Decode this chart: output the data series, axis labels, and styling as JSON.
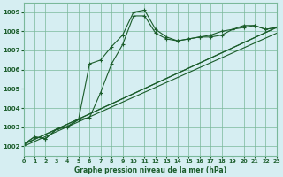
{
  "title": "Graphe pression niveau de la mer (hPa)",
  "background_color": "#d6eef2",
  "grid_color": "#7ab89a",
  "line_color": "#1a5c2a",
  "xlim": [
    0,
    23
  ],
  "ylim": [
    1001.5,
    1009.5
  ],
  "yticks": [
    1002,
    1003,
    1004,
    1005,
    1006,
    1007,
    1008,
    1009
  ],
  "xticks": [
    0,
    1,
    2,
    3,
    4,
    5,
    6,
    7,
    8,
    9,
    10,
    11,
    12,
    13,
    14,
    15,
    16,
    17,
    18,
    19,
    20,
    21,
    22,
    23
  ],
  "series": [
    {
      "x": [
        0,
        1,
        2,
        3,
        4,
        5,
        6,
        7,
        8,
        9,
        10,
        11,
        12,
        13,
        14,
        15,
        16,
        17,
        18,
        19,
        20,
        21,
        22,
        23
      ],
      "y": [
        1002.1,
        1002.5,
        1002.4,
        1002.9,
        1003.0,
        1003.4,
        1003.5,
        1004.8,
        1006.3,
        1007.3,
        1008.8,
        1008.8,
        1007.9,
        1007.6,
        1007.5,
        1007.6,
        1007.7,
        1007.7,
        1007.8,
        1008.1,
        1008.3,
        1008.3,
        1008.1,
        1008.2
      ],
      "linestyle": "-",
      "marker": "+"
    },
    {
      "x": [
        0,
        1,
        2,
        3,
        4,
        5,
        6,
        7,
        8,
        9,
        10,
        11,
        12,
        13,
        14,
        15,
        16,
        17,
        18,
        19,
        20,
        21,
        22,
        23
      ],
      "y": [
        1002.1,
        1002.5,
        1002.4,
        1002.9,
        1003.05,
        1003.4,
        1006.3,
        1006.5,
        1007.2,
        1007.8,
        1009.0,
        1009.1,
        1008.1,
        1007.7,
        1007.5,
        1007.6,
        1007.7,
        1007.8,
        1008.0,
        1008.1,
        1008.2,
        1008.3,
        1008.1,
        1008.2
      ],
      "linestyle": "-",
      "marker": "+"
    },
    {
      "x": [
        0,
        23
      ],
      "y": [
        1002.1,
        1008.2
      ],
      "linestyle": "-",
      "marker": null
    },
    {
      "x": [
        0,
        23
      ],
      "y": [
        1002.1,
        1008.2
      ],
      "linestyle": "-",
      "marker": null
    },
    {
      "x": [
        0,
        23
      ],
      "y": [
        1002.0,
        1007.9
      ],
      "linestyle": "-",
      "marker": null
    }
  ]
}
